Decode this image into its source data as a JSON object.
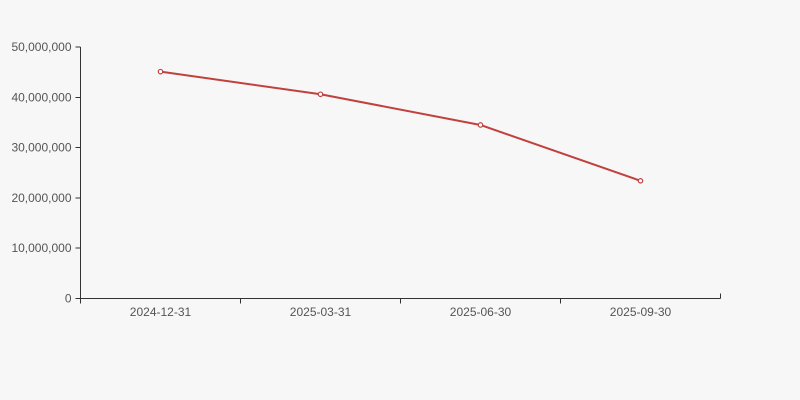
{
  "chart_data": {
    "type": "line",
    "title": "",
    "xlabel": "",
    "ylabel": "",
    "categories": [
      "2024-12-31",
      "2025-03-31",
      "2025-06-30",
      "2025-09-30"
    ],
    "values": [
      45100000,
      40600000,
      34500000,
      23400000
    ],
    "ylim": [
      0,
      50000000
    ],
    "y_tick_step": 10000000,
    "y_tick_labels": [
      "0",
      "10,000,000",
      "20,000,000",
      "30,000,000",
      "40,000,000",
      "50,000,000"
    ],
    "grid": false,
    "legend": null,
    "marker": "open-circle",
    "colors": {
      "background": "#f7f7f7",
      "line": "#c0413e",
      "marker_fill": "#ffffff",
      "axis": "#333333",
      "tick_label": "#555555"
    }
  }
}
